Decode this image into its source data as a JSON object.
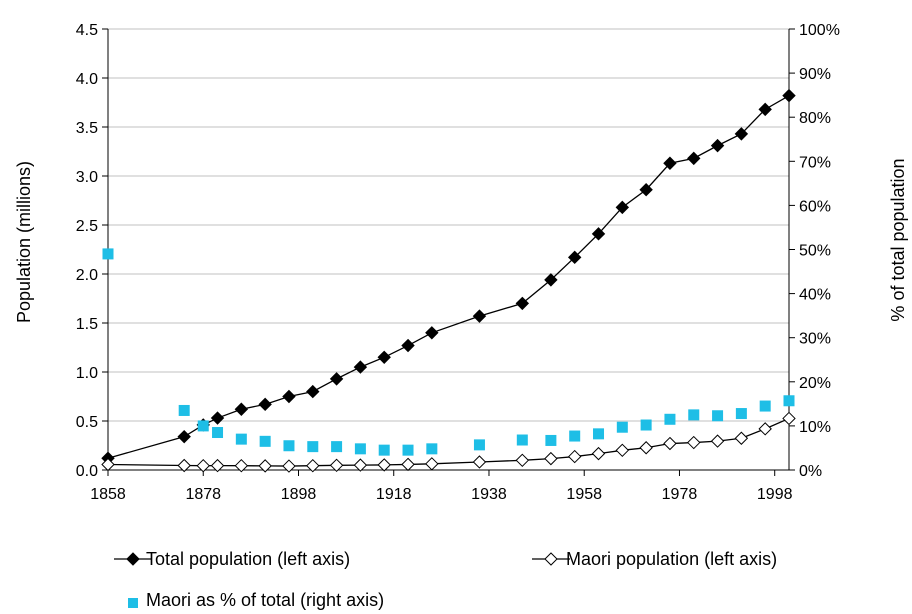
{
  "chart_data": {
    "type": "line",
    "title": "",
    "xlabel": "",
    "ylabel": "Population (millions)",
    "y2label": "% of total population",
    "xlim": [
      1858,
      2001
    ],
    "ylim": [
      0,
      4.5
    ],
    "y2lim": [
      0,
      100
    ],
    "x_ticks": [
      1858,
      1878,
      1898,
      1918,
      1938,
      1958,
      1978,
      1998
    ],
    "y_ticks": [
      "0.0",
      "0.5",
      "1.0",
      "1.5",
      "2.0",
      "2.5",
      "3.0",
      "3.5",
      "4.0",
      "4.5"
    ],
    "y2_ticks": [
      "0%",
      "10%",
      "20%",
      "30%",
      "40%",
      "50%",
      "60%",
      "70%",
      "80%",
      "90%",
      "100%"
    ],
    "grid": "horizontal",
    "legend_position": "bottom",
    "series": [
      {
        "name": "Total population (left axis)",
        "axis": "left",
        "style": "line-filled-diamond",
        "color": "#000000",
        "points": [
          [
            1858,
            0.12
          ],
          [
            1874,
            0.34
          ],
          [
            1878,
            0.46
          ],
          [
            1881,
            0.53
          ],
          [
            1886,
            0.62
          ],
          [
            1891,
            0.67
          ],
          [
            1896,
            0.75
          ],
          [
            1901,
            0.8
          ],
          [
            1906,
            0.93
          ],
          [
            1911,
            1.05
          ],
          [
            1916,
            1.15
          ],
          [
            1921,
            1.27
          ],
          [
            1926,
            1.4
          ],
          [
            1936,
            1.57
          ],
          [
            1945,
            1.7
          ],
          [
            1951,
            1.94
          ],
          [
            1956,
            2.17
          ],
          [
            1961,
            2.41
          ],
          [
            1966,
            2.68
          ],
          [
            1971,
            2.86
          ],
          [
            1976,
            3.13
          ],
          [
            1981,
            3.18
          ],
          [
            1986,
            3.31
          ],
          [
            1991,
            3.43
          ],
          [
            1996,
            3.68
          ],
          [
            2001,
            3.82
          ]
        ]
      },
      {
        "name": "Maori population (left axis)",
        "axis": "left",
        "style": "line-open-diamond",
        "color": "#000000",
        "points": [
          [
            1858,
            0.056
          ],
          [
            1874,
            0.046
          ],
          [
            1878,
            0.044
          ],
          [
            1881,
            0.045
          ],
          [
            1886,
            0.044
          ],
          [
            1891,
            0.042
          ],
          [
            1896,
            0.04
          ],
          [
            1901,
            0.044
          ],
          [
            1906,
            0.048
          ],
          [
            1911,
            0.05
          ],
          [
            1916,
            0.052
          ],
          [
            1921,
            0.057
          ],
          [
            1926,
            0.063
          ],
          [
            1936,
            0.082
          ],
          [
            1945,
            0.099
          ],
          [
            1951,
            0.116
          ],
          [
            1956,
            0.137
          ],
          [
            1961,
            0.167
          ],
          [
            1966,
            0.201
          ],
          [
            1971,
            0.227
          ],
          [
            1976,
            0.27
          ],
          [
            1981,
            0.28
          ],
          [
            1986,
            0.295
          ],
          [
            1991,
            0.324
          ],
          [
            1996,
            0.42
          ],
          [
            2001,
            0.526
          ]
        ]
      },
      {
        "name": "Maori as % of total (right axis)",
        "axis": "right",
        "style": "marker-square",
        "color": "#1ebee6",
        "points": [
          [
            1858,
            49
          ],
          [
            1874,
            13.5
          ],
          [
            1878,
            10
          ],
          [
            1881,
            8.5
          ],
          [
            1886,
            7
          ],
          [
            1891,
            6.5
          ],
          [
            1896,
            5.5
          ],
          [
            1901,
            5.3
          ],
          [
            1906,
            5.3
          ],
          [
            1911,
            4.8
          ],
          [
            1916,
            4.5
          ],
          [
            1921,
            4.5
          ],
          [
            1926,
            4.8
          ],
          [
            1936,
            5.7
          ],
          [
            1945,
            6.8
          ],
          [
            1951,
            6.7
          ],
          [
            1956,
            7.7
          ],
          [
            1961,
            8.2
          ],
          [
            1966,
            9.7
          ],
          [
            1971,
            10.2
          ],
          [
            1976,
            11.5
          ],
          [
            1981,
            12.5
          ],
          [
            1986,
            12.3
          ],
          [
            1991,
            12.8
          ],
          [
            1996,
            14.5
          ],
          [
            2001,
            15.7
          ]
        ]
      }
    ]
  }
}
